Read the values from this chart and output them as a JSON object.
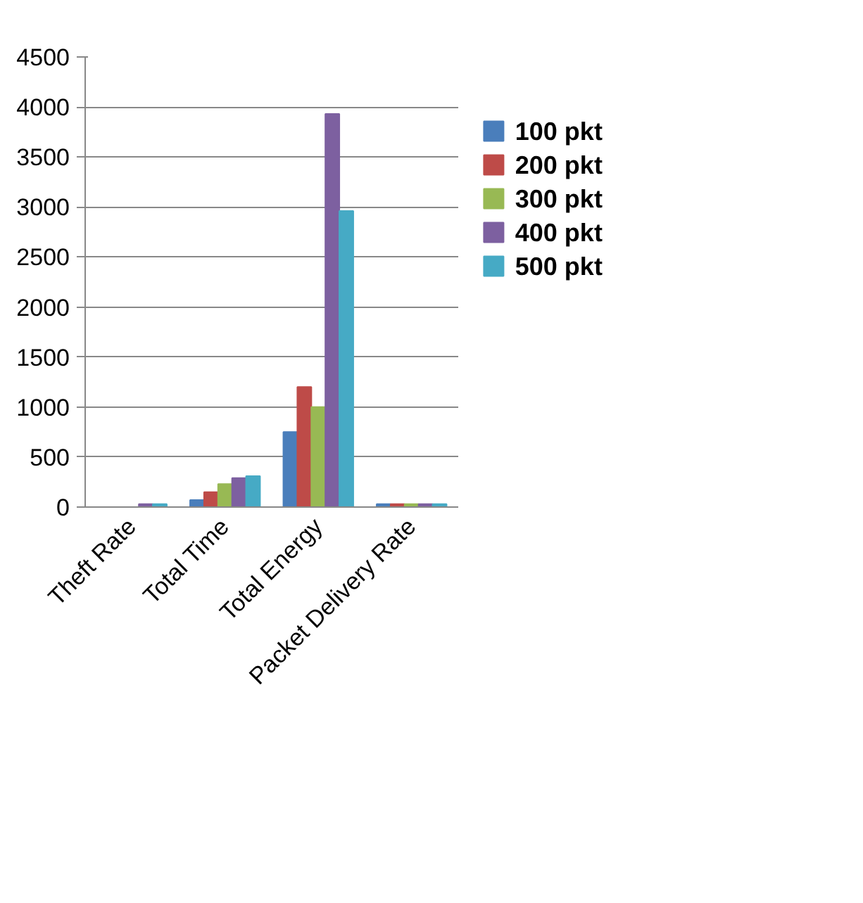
{
  "chart_data": {
    "type": "bar",
    "categories": [
      "Theft Rate",
      "Total Time",
      "Total Energy",
      "Packet Delivery Rate"
    ],
    "series": [
      {
        "name": "100 pkt",
        "color": "#4a7ebb",
        "values": [
          0,
          70,
          750,
          30
        ]
      },
      {
        "name": "200 pkt",
        "color": "#be4b48",
        "values": [
          0,
          150,
          1200,
          30
        ]
      },
      {
        "name": "300 pkt",
        "color": "#98b954",
        "values": [
          0,
          230,
          1000,
          30
        ]
      },
      {
        "name": "400 pkt",
        "color": "#7d60a0",
        "values": [
          30,
          290,
          3930,
          30
        ]
      },
      {
        "name": "500 pkt",
        "color": "#46aac5",
        "values": [
          30,
          310,
          2960,
          30
        ]
      }
    ],
    "ylim": [
      0,
      4500
    ],
    "yticks": [
      0,
      500,
      1000,
      1500,
      2000,
      2500,
      3000,
      3500,
      4000,
      4500
    ],
    "grid": "y",
    "legend": "right"
  }
}
